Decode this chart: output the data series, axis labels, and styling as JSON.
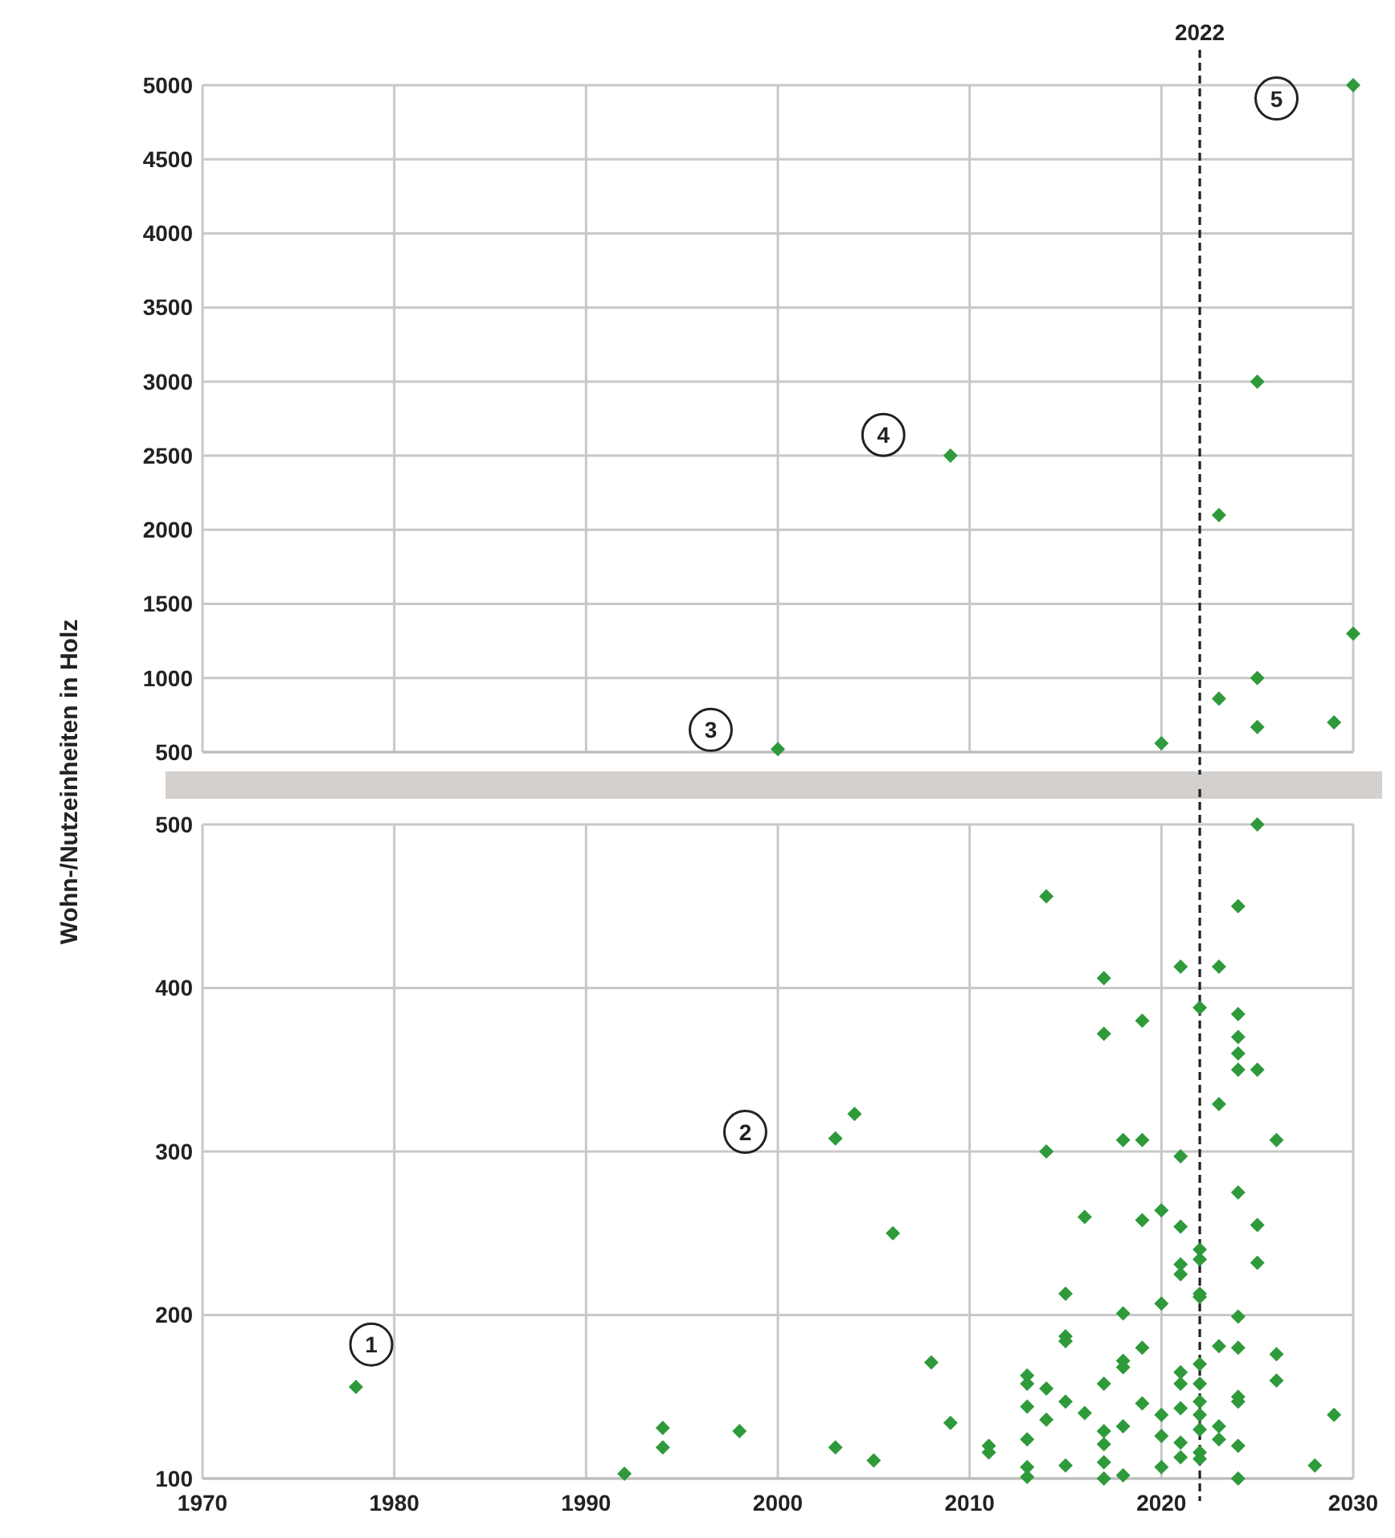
{
  "chart_data": [
    {
      "type": "scatter",
      "ylabel": "Wohn-/Nutzeinheiten in Holz",
      "xlim": [
        1970,
        2030
      ],
      "xticks": [
        1970,
        1980,
        1990,
        2000,
        2010,
        2020,
        2030
      ],
      "ylim": [
        500,
        5000
      ],
      "yticks": [
        500,
        1000,
        1500,
        2000,
        2500,
        3000,
        3500,
        4000,
        4500,
        5000
      ],
      "tick_labels": "y",
      "grid": true,
      "marker": "diamond",
      "series": [
        {
          "color": "#2e9a3a",
          "x": [
            2000,
            2009,
            2020,
            2023,
            2023,
            2025,
            2025,
            2025,
            2029,
            2030,
            2030
          ],
          "values": [
            520,
            2500,
            560,
            2100,
            860,
            3000,
            1000,
            670,
            700,
            5000,
            1300
          ]
        }
      ],
      "ref_lines": [
        {
          "axis": "x",
          "value": 2022,
          "label": "2022",
          "line_style": "dashed"
        }
      ],
      "annotations": [
        {
          "text": "3",
          "x": 1996.5,
          "y": 650
        },
        {
          "text": "4",
          "x": 2005.5,
          "y": 2640
        },
        {
          "text": "5",
          "x": 2026,
          "y": 4910
        }
      ]
    },
    {
      "type": "scatter",
      "xlim": [
        1970,
        2030
      ],
      "xticks": [
        1970,
        1980,
        1990,
        2000,
        2010,
        2020,
        2030
      ],
      "ylim": [
        100,
        500
      ],
      "yticks": [
        100,
        200,
        300,
        400,
        500
      ],
      "grid": true,
      "marker": "diamond",
      "series": [
        {
          "color": "#2e9a3a",
          "x": [
            1978,
            1992,
            1994,
            1994,
            1998,
            2003,
            2003,
            2004,
            2005,
            2006,
            2008,
            2009,
            2011,
            2011,
            2013,
            2013,
            2013,
            2013,
            2013,
            2013,
            2014,
            2014,
            2014,
            2014,
            2015,
            2015,
            2015,
            2015,
            2015,
            2016,
            2016,
            2017,
            2017,
            2017,
            2017,
            2017,
            2017,
            2017,
            2018,
            2018,
            2018,
            2018,
            2018,
            2018,
            2019,
            2019,
            2019,
            2019,
            2019,
            2020,
            2020,
            2020,
            2020,
            2020,
            2021,
            2021,
            2021,
            2021,
            2021,
            2021,
            2021,
            2021,
            2021,
            2021,
            2022,
            2022,
            2022,
            2022,
            2022,
            2022,
            2022,
            2022,
            2022,
            2022,
            2022,
            2022,
            2023,
            2023,
            2023,
            2023,
            2023,
            2024,
            2024,
            2024,
            2024,
            2024,
            2024,
            2024,
            2024,
            2024,
            2024,
            2024,
            2024,
            2025,
            2025,
            2025,
            2025,
            2026,
            2026,
            2026,
            2028,
            2029
          ],
          "values": [
            156,
            103,
            131,
            119,
            129,
            308,
            119,
            323,
            111,
            250,
            171,
            134,
            120,
            116,
            163,
            158,
            144,
            124,
            107,
            101,
            456,
            300,
            155,
            136,
            213,
            187,
            184,
            147,
            108,
            260,
            140,
            406,
            372,
            158,
            129,
            121,
            110,
            100,
            307,
            201,
            172,
            168,
            132,
            102,
            380,
            307,
            258,
            180,
            146,
            264,
            207,
            139,
            126,
            107,
            413,
            297,
            254,
            231,
            225,
            165,
            158,
            143,
            122,
            113,
            388,
            240,
            234,
            213,
            211,
            170,
            158,
            147,
            139,
            130,
            116,
            112,
            413,
            329,
            181,
            132,
            124,
            450,
            384,
            370,
            360,
            350,
            275,
            199,
            180,
            150,
            147,
            120,
            100,
            500,
            350,
            255,
            232,
            307,
            176,
            160,
            108,
            139
          ]
        }
      ],
      "ref_lines": [
        {
          "axis": "x",
          "value": 2022,
          "line_style": "dashed"
        }
      ],
      "annotations": [
        {
          "text": "1",
          "x": 1978.8,
          "y": 182
        },
        {
          "text": "2",
          "x": 1998.3,
          "y": 312
        }
      ]
    }
  ]
}
